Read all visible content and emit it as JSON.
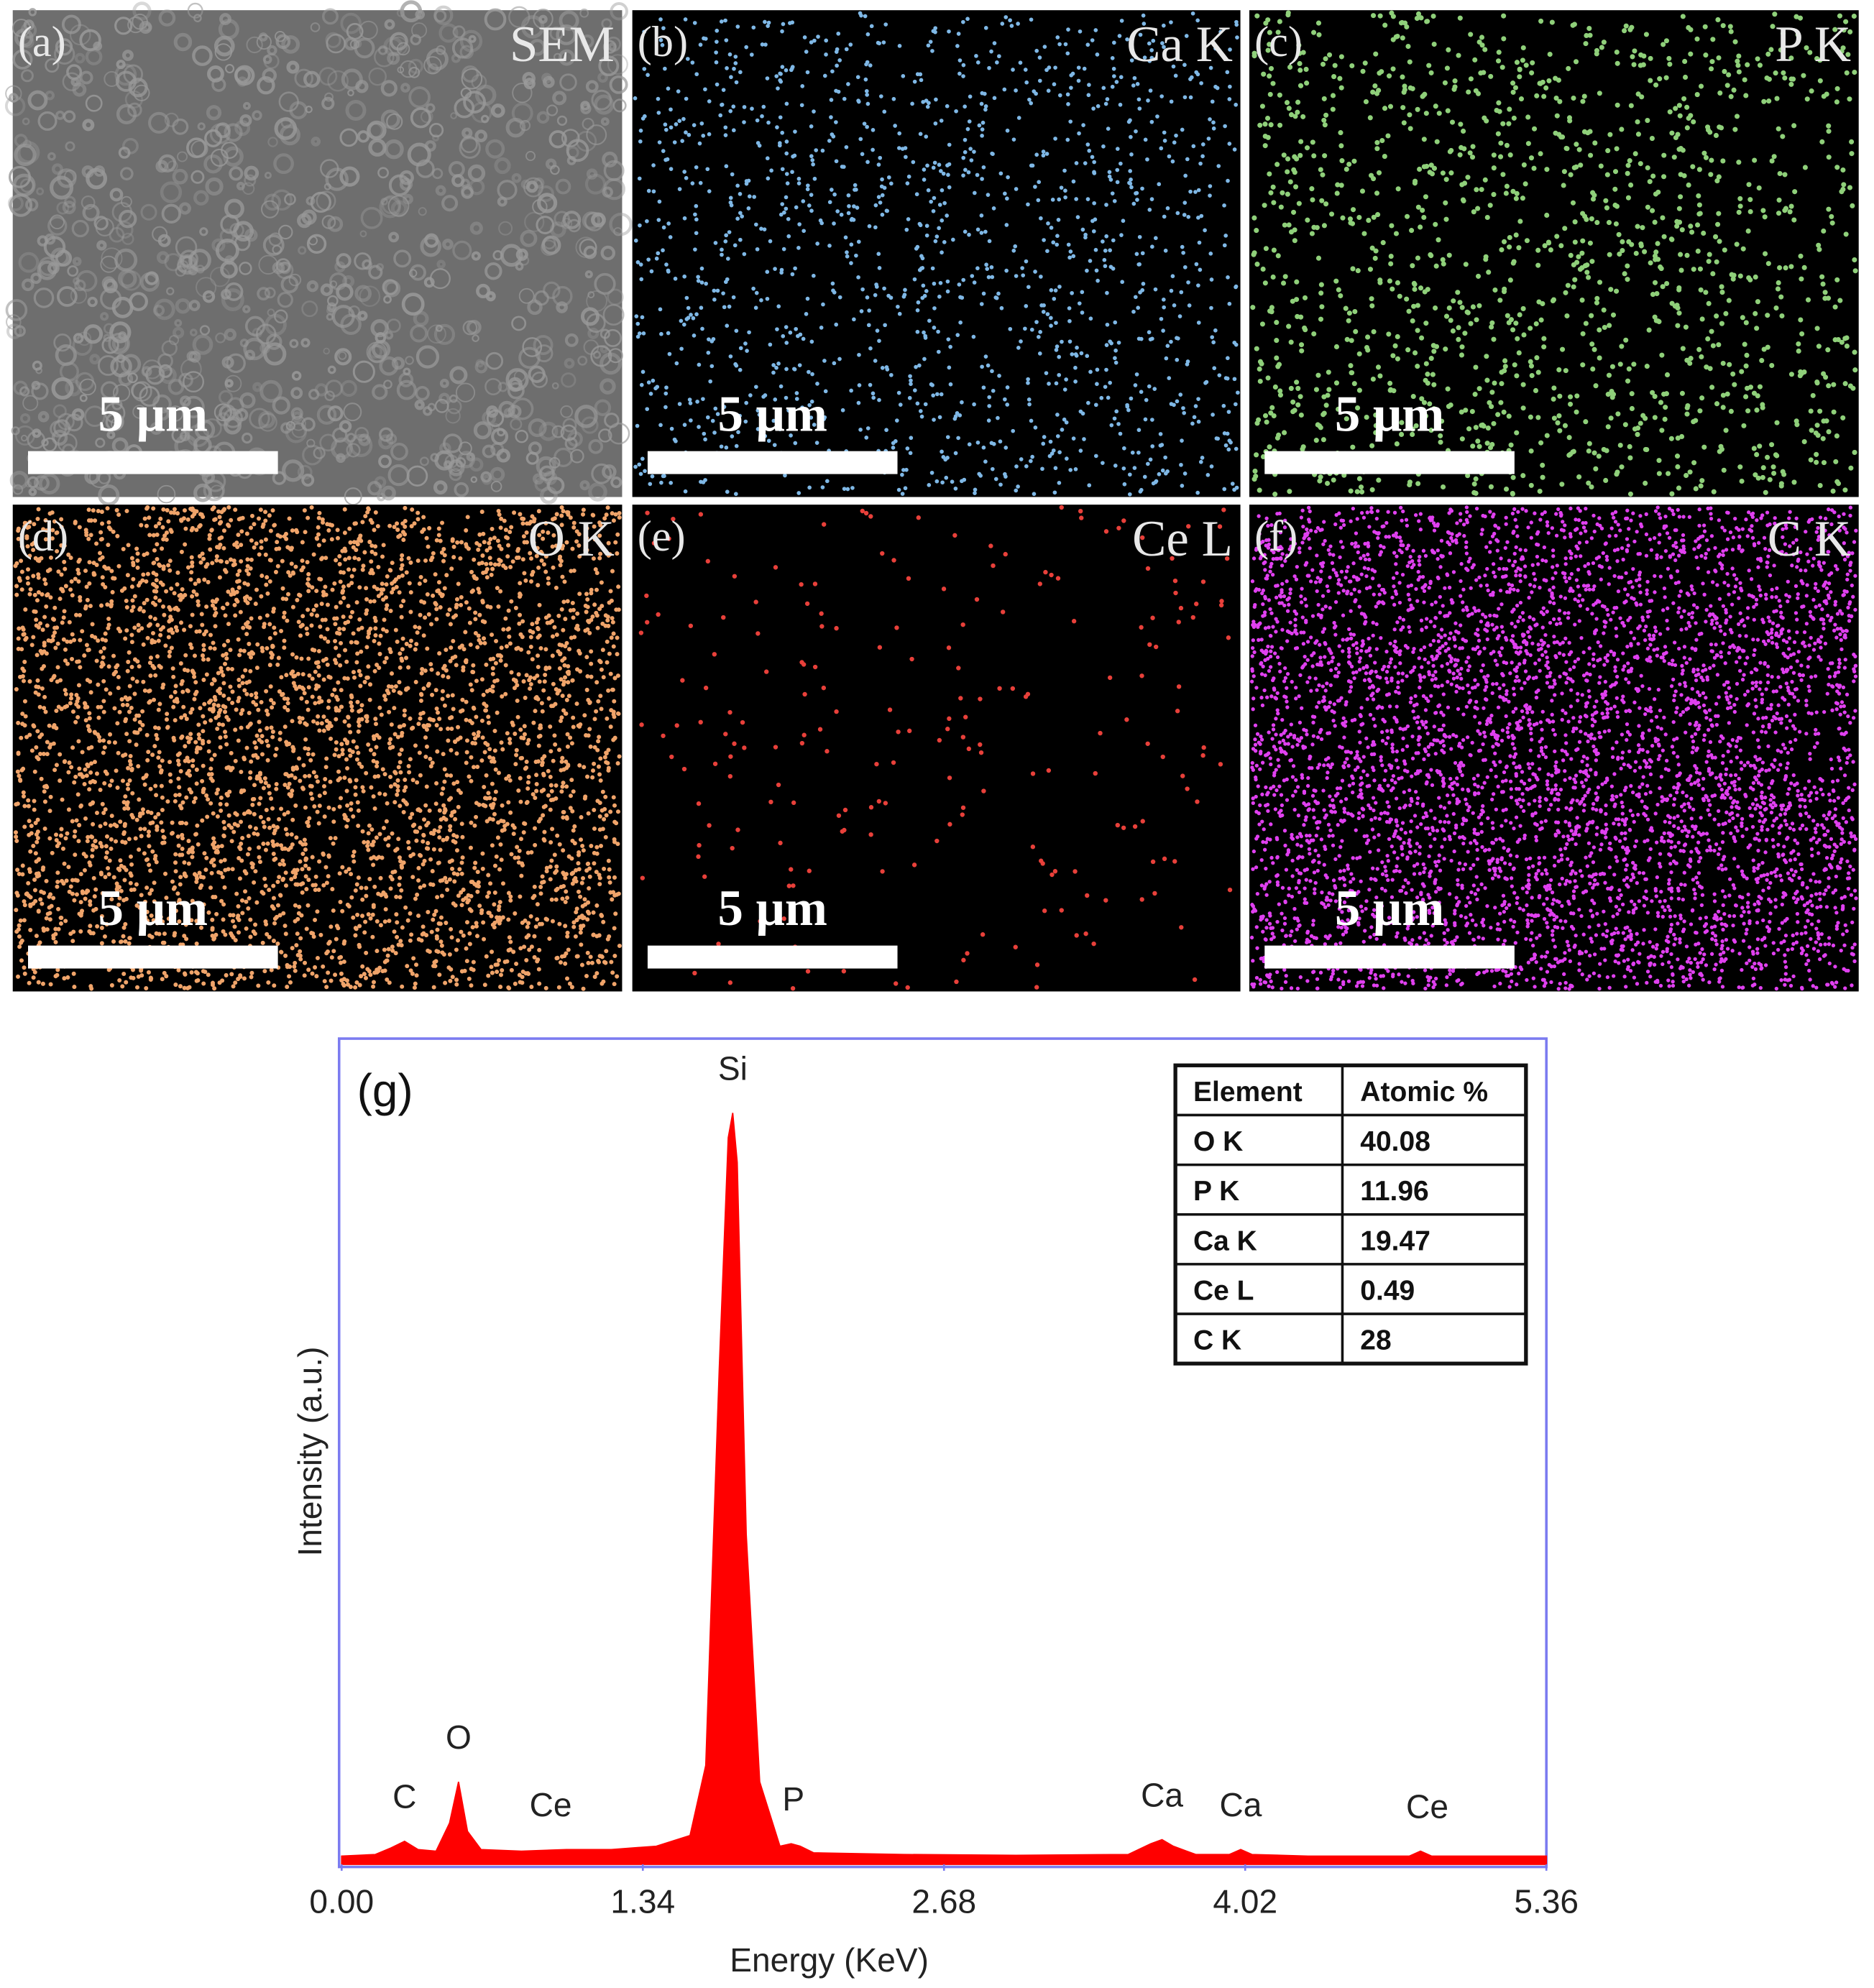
{
  "panels": [
    {
      "label": "(a)",
      "title": "SEM",
      "scale_bar": "5 μm",
      "color": "#9a9a9a"
    },
    {
      "label": "(b)",
      "title": "Ca K",
      "scale_bar": "5 μm",
      "color": "#7fb8e6"
    },
    {
      "label": "(c)",
      "title": "P K",
      "scale_bar": "5 μm",
      "color": "#8fd07a"
    },
    {
      "label": "(d)",
      "title": "O K",
      "scale_bar": "5 μm",
      "color": "#f0a46a"
    },
    {
      "label": "(e)",
      "title": "Ce L",
      "scale_bar": "5 μm",
      "color": "#e8403a"
    },
    {
      "label": "(f)",
      "title": "C K",
      "scale_bar": "5 μm",
      "color": "#e040f0"
    }
  ],
  "chart_data": {
    "type": "area",
    "panel_label": "(g)",
    "x_label": "Energy (KeV)",
    "y_label": "Intensity (a.u.)",
    "color": "#ff0000",
    "x": [
      0.0,
      0.15,
      0.22,
      0.28,
      0.34,
      0.42,
      0.48,
      0.52,
      0.56,
      0.62,
      0.8,
      1.0,
      1.2,
      1.4,
      1.55,
      1.62,
      1.68,
      1.72,
      1.74,
      1.76,
      1.8,
      1.86,
      1.95,
      2.0,
      2.04,
      2.1,
      2.5,
      3.0,
      3.5,
      3.6,
      3.65,
      3.7,
      3.8,
      3.95,
      4.0,
      4.05,
      4.3,
      4.75,
      4.8,
      4.85,
      5.0,
      5.36
    ],
    "values": [
      1,
      1.2,
      2,
      2.8,
      1.8,
      1.6,
      5,
      10,
      4,
      1.8,
      1.6,
      1.8,
      1.8,
      2.2,
      3.5,
      12,
      60,
      88,
      91,
      85,
      40,
      10,
      2.2,
      2.5,
      2.2,
      1.4,
      1.2,
      1.1,
      1.2,
      2.5,
      3,
      2.2,
      1.2,
      1.2,
      1.8,
      1.2,
      1,
      1,
      1.6,
      1,
      1,
      1
    ],
    "xlim": [
      0,
      5.36
    ],
    "ylim": [
      0,
      100
    ],
    "xticks": [
      {
        "value": 0,
        "label": "0.00"
      },
      1.34,
      2.68,
      4.02,
      5.36
    ],
    "annotations": [
      {
        "text": "C",
        "x": 0.28
      },
      {
        "text": "O",
        "x": 0.52
      },
      {
        "text": "Ce",
        "x": 0.93
      },
      {
        "text": "Si",
        "x": 1.74
      },
      {
        "text": "P",
        "x": 2.01
      },
      {
        "text": "Ca",
        "x": 3.65
      },
      {
        "text": "Ca",
        "x": 4.0
      },
      {
        "text": "Ce",
        "x": 4.83
      }
    ],
    "table": {
      "header": [
        "Element",
        "Atomic %"
      ],
      "rows": [
        [
          "O K",
          40.08
        ],
        [
          "P K",
          11.96
        ],
        [
          "Ca K",
          19.47
        ],
        [
          "Ce L",
          0.49
        ],
        [
          "C K",
          28
        ]
      ]
    }
  }
}
